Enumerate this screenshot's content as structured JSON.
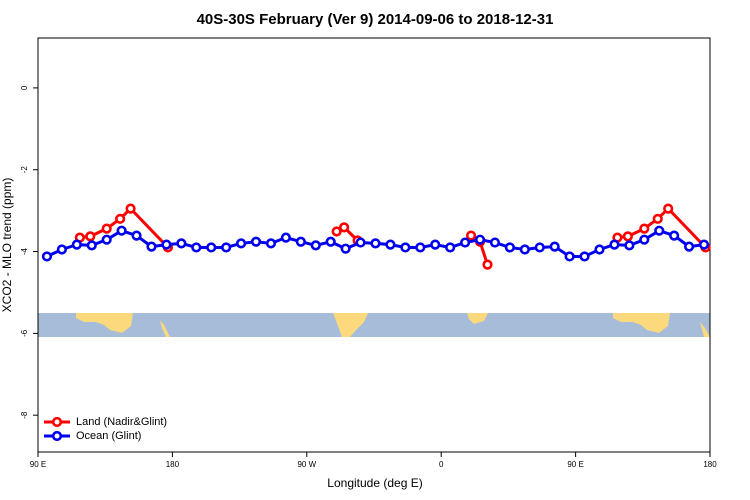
{
  "chart_data": {
    "type": "line",
    "title": "40S-30S February (Ver 9)   2014-09-06 to 2018-12-31",
    "x_label": "Longitude (deg E)",
    "y_label": "XCO2 - MLO trend (ppm)",
    "xlim": [
      90,
      540
    ],
    "xticks": [
      {
        "value": 90,
        "label": "90 E"
      },
      180,
      {
        "value": 270,
        "label": "90 W"
      },
      {
        "value": 360,
        "label": "0"
      },
      {
        "value": 450,
        "label": "90 E"
      },
      {
        "value": 540,
        "label": "180"
      }
    ],
    "ylim": [
      -8.9,
      1.22
    ],
    "yticks": [
      0,
      -2,
      -4,
      -6,
      -8
    ],
    "legend": "lower left",
    "series": [
      {
        "name": "Land (Nadir&Glint)",
        "color": "#ff0000",
        "x": [
          118,
          125,
          136,
          145,
          152,
          177,
          null,
          290,
          295,
          304,
          null,
          380,
          386,
          391,
          null,
          478,
          485,
          496,
          505,
          512,
          537
        ],
        "values": [
          -3.66,
          -3.63,
          -3.44,
          -3.2,
          -2.95,
          -3.9,
          null,
          -3.51,
          -3.41,
          -3.73,
          null,
          -3.61,
          -3.76,
          -4.32,
          null,
          -3.66,
          -3.63,
          -3.44,
          -3.2,
          -2.95,
          -3.9
        ]
      },
      {
        "name": "Ocean (Glint)",
        "color": "#0000ee",
        "x": [
          96,
          106,
          116,
          126,
          136,
          146,
          156,
          166,
          176,
          186,
          196,
          206,
          216,
          226,
          236,
          246,
          256,
          266,
          276,
          286,
          296,
          306,
          316,
          326,
          336,
          346,
          356,
          366,
          376,
          386,
          396,
          406,
          416,
          426,
          436,
          446,
          456,
          466,
          476,
          486,
          496,
          506,
          516,
          526,
          536
        ],
        "values": [
          -4.12,
          -3.95,
          -3.83,
          -3.85,
          -3.71,
          -3.49,
          -3.61,
          -3.88,
          -3.83,
          -3.8,
          -3.9,
          -3.9,
          -3.9,
          -3.8,
          -3.76,
          -3.8,
          -3.66,
          -3.76,
          -3.85,
          -3.76,
          -3.93,
          -3.78,
          -3.8,
          -3.83,
          -3.9,
          -3.9,
          -3.83,
          -3.9,
          -3.78,
          -3.71,
          -3.78,
          -3.9,
          -3.95,
          -3.9,
          -3.88,
          -4.12,
          -4.12,
          -3.95,
          -3.83,
          -3.85,
          -3.71,
          -3.49,
          -3.61,
          -3.88,
          -3.83
        ]
      }
    ]
  }
}
